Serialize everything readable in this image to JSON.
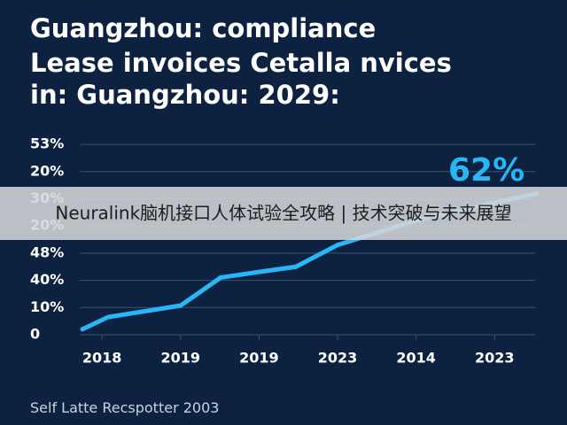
{
  "chart_data": {
    "type": "line",
    "title": [
      "Guangzhou: compliance",
      "Lease invoices Cetalla nvices",
      "in: Guangzhou: 2029:"
    ],
    "x": [
      -0.25,
      0.08,
      1,
      1.51,
      1.98,
      2.47,
      3,
      4,
      5,
      5.54
    ],
    "series": [
      {
        "color": "#29b6f6",
        "values": [
          0.2,
          0.65,
          1.07,
          2.1,
          2.3,
          2.5,
          3.3,
          4.2,
          4.85,
          5.2
        ]
      }
    ],
    "xlim": [
      -0.25,
      5.55
    ],
    "xticks": [
      {
        "value": 0,
        "label": "2018"
      },
      {
        "value": 1,
        "label": "2019"
      },
      {
        "value": 2,
        "label": "2019"
      },
      {
        "value": 3,
        "label": "2023"
      },
      {
        "value": 4,
        "label": "2014"
      },
      {
        "value": 5,
        "label": "2023"
      }
    ],
    "ylim": [
      0,
      7.1
    ],
    "yticks": [
      0,
      {
        "value": 1,
        "label": "10%"
      },
      {
        "value": 2,
        "label": "40%"
      },
      {
        "value": 3,
        "label": "48%"
      },
      {
        "value": 4,
        "label": "20%"
      },
      {
        "value": 5,
        "label": "30%"
      },
      {
        "value": 6,
        "label": "20%"
      },
      {
        "value": 7,
        "label": "53%"
      }
    ],
    "grid": true,
    "annotation": "62%",
    "footer": "Self Latte Recspotter 2003"
  },
  "banner": "Neuralink脑机接口人体试验全攻略 | 技术突破与未来展望"
}
